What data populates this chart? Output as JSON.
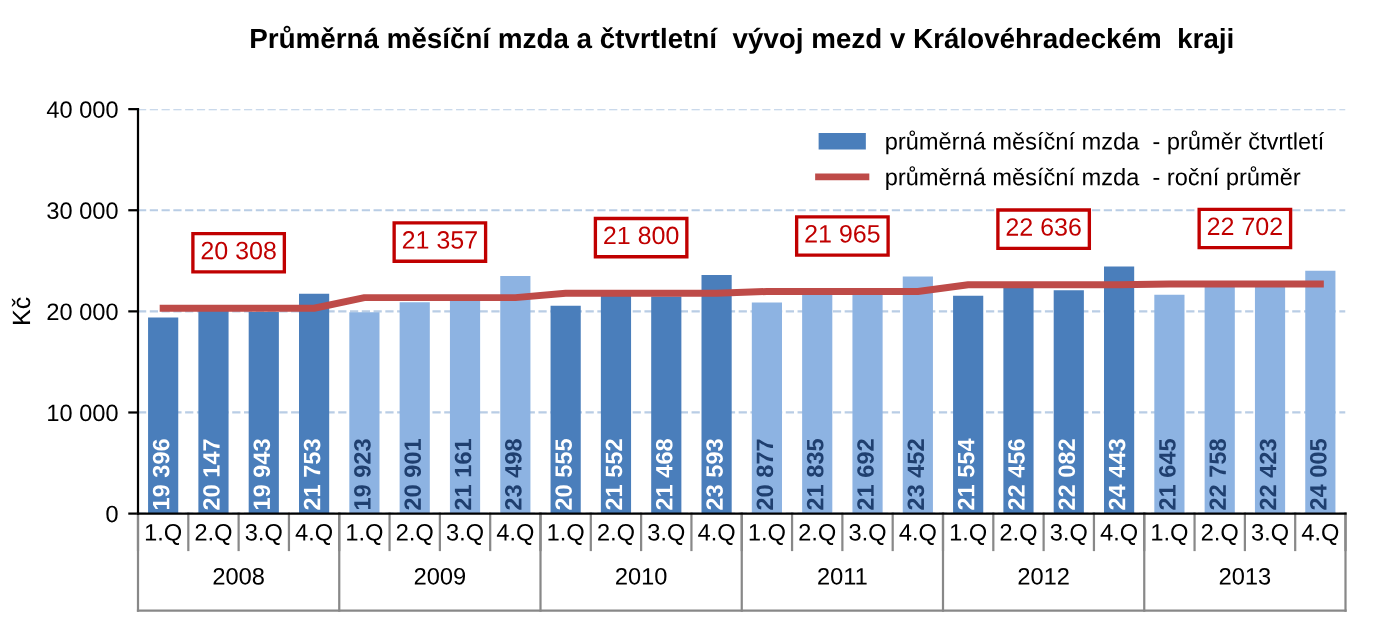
{
  "chart_data": {
    "type": "bar",
    "title": "Průměrná měsíční mzda a čtvrtletní  vývoj mezd v Královéhradeckém  kraji",
    "ylabel": "Kč",
    "categories": [
      "1.Q",
      "2.Q",
      "3.Q",
      "4.Q",
      "1.Q",
      "2.Q",
      "3.Q",
      "4.Q",
      "1.Q",
      "2.Q",
      "3.Q",
      "4.Q",
      "1.Q",
      "2.Q",
      "3.Q",
      "4.Q",
      "1.Q",
      "2.Q",
      "3.Q",
      "4.Q",
      "1.Q",
      "2.Q",
      "3.Q",
      "4.Q"
    ],
    "annotations": [
      "2008",
      "2009",
      "2010",
      "2011",
      "2012",
      "2013"
    ],
    "series": [
      {
        "name": "průměrná měsíční mzda  - průměr čtvrtletí",
        "colors": [
          "#4a7ebb",
          "#4a7ebb",
          "#4a7ebb",
          "#4a7ebb",
          "#8db3e2",
          "#8db3e2",
          "#8db3e2",
          "#8db3e2",
          "#4a7ebb",
          "#4a7ebb",
          "#4a7ebb",
          "#4a7ebb",
          "#8db3e2",
          "#8db3e2",
          "#8db3e2",
          "#8db3e2",
          "#4a7ebb",
          "#4a7ebb",
          "#4a7ebb",
          "#4a7ebb",
          "#8db3e2",
          "#8db3e2",
          "#8db3e2",
          "#8db3e2"
        ],
        "values": [
          19396,
          20147,
          19943,
          21753,
          19923,
          20901,
          21161,
          23498,
          20555,
          21552,
          21468,
          23593,
          20877,
          21835,
          21692,
          23452,
          21554,
          22456,
          22082,
          24443,
          21645,
          22758,
          22423,
          24005
        ],
        "value_labels": [
          "19 396",
          "20 147",
          "19 943",
          "21 753",
          "19 923",
          "20 901",
          "21 161",
          "23 498",
          "20 555",
          "21 552",
          "21 468",
          "23 593",
          "20 877",
          "21 835",
          "21 692",
          "23 452",
          "21 554",
          "22 456",
          "22 082",
          "24 443",
          "21 645",
          "22 758",
          "22 423",
          "24 005"
        ]
      },
      {
        "name": "průměrná měsíční mzda  - roční průměr",
        "type": "line",
        "color": "#be4b48",
        "values": [
          20308,
          20308,
          20308,
          20308,
          21357,
          21357,
          21357,
          21357,
          21800,
          21800,
          21800,
          21800,
          21965,
          21965,
          21965,
          21965,
          22636,
          22636,
          22636,
          22636,
          22702,
          22702,
          22702,
          22702
        ],
        "value_labels": [
          null,
          "20 308",
          null,
          null,
          null,
          "21 357",
          null,
          null,
          null,
          "21 800",
          null,
          null,
          null,
          "21 965",
          null,
          null,
          null,
          "22 636",
          null,
          null,
          null,
          "22 702",
          null,
          null
        ]
      }
    ],
    "ylim": [
      0,
      40000
    ],
    "yticks": [
      0,
      {
        "value": 10000,
        "label": "10 000"
      },
      {
        "value": 20000,
        "label": "20 000"
      },
      {
        "value": 30000,
        "label": "30 000"
      },
      {
        "value": 40000,
        "label": "40 000"
      }
    ],
    "grid": "y",
    "legend": "top right",
    "marker": "none",
    "line_style": "solid"
  }
}
